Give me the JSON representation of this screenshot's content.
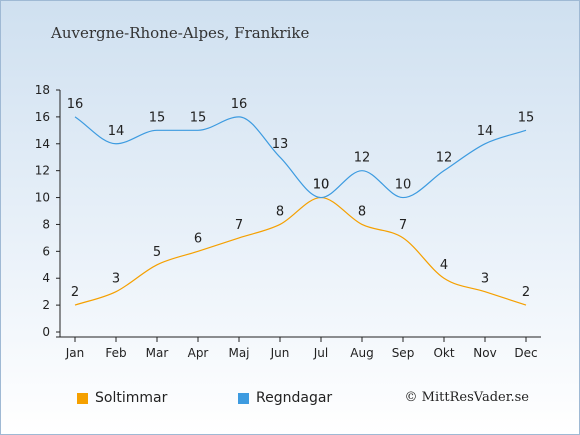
{
  "title": "Auvergne-Rhone-Alpes, Frankrike",
  "copyright": "© MittResVader.se",
  "chart_data": {
    "type": "line",
    "categories": [
      "Jan",
      "Feb",
      "Mar",
      "Apr",
      "Maj",
      "Jun",
      "Jul",
      "Aug",
      "Sep",
      "Okt",
      "Nov",
      "Dec"
    ],
    "ylim": [
      0,
      18
    ],
    "yticks": [
      0,
      2,
      4,
      6,
      8,
      10,
      12,
      14,
      16,
      18
    ],
    "grid": false,
    "legend_position": "bottom-left",
    "series": [
      {
        "name": "Soltimmar",
        "color": "#f5a000",
        "values": [
          2,
          3,
          5,
          6,
          7,
          8,
          10,
          8,
          7,
          4,
          3,
          2
        ]
      },
      {
        "name": "Regndagar",
        "color": "#3d9be0",
        "values": [
          16,
          14,
          15,
          15,
          16,
          13,
          10,
          12,
          10,
          12,
          14,
          15
        ]
      }
    ]
  }
}
